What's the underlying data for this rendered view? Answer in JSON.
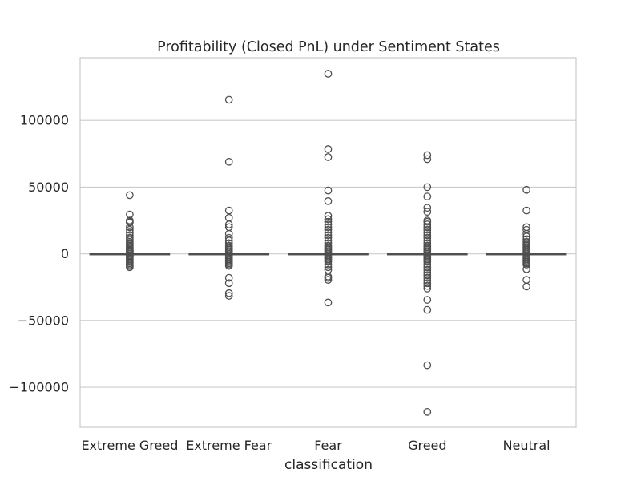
{
  "chart_data": {
    "type": "box",
    "title": "Profitability (Closed PnL) under Sentiment States",
    "xlabel": "classification",
    "ylabel": "",
    "categories": [
      "Extreme Greed",
      "Extreme Fear",
      "Fear",
      "Greed",
      "Neutral"
    ],
    "y_ticks": [
      -100000,
      -50000,
      0,
      50000,
      100000
    ],
    "y_tick_labels": [
      "−100000",
      "−50000",
      "0",
      "50000",
      "100000"
    ],
    "ylim": [
      -130000,
      147000
    ],
    "grid": "horizontal",
    "box_color": "#4f4f4f",
    "boxes": [
      {
        "category": "Extreme Greed",
        "q1": 0,
        "median": 0,
        "q3": 0,
        "whisker_low": 0,
        "whisker_high": 0,
        "outliers": [
          44000,
          29500,
          25000,
          24000,
          23500,
          20000,
          18000,
          16000,
          14000,
          12000,
          10500,
          9000,
          8000,
          7000,
          6000,
          5000,
          4000,
          3000,
          2500,
          2000,
          1500,
          1000,
          -1000,
          -1500,
          -2000,
          -3000,
          -4000,
          -5000,
          -6000,
          -7000,
          -8000,
          -9000,
          -10000
        ]
      },
      {
        "category": "Extreme Fear",
        "q1": 0,
        "median": 0,
        "q3": 0,
        "whisker_low": 0,
        "whisker_high": 0,
        "outliers": [
          115500,
          69000,
          32500,
          27000,
          22000,
          20000,
          15000,
          12000,
          10000,
          8000,
          6000,
          5000,
          4000,
          3000,
          2000,
          1000,
          -1000,
          -2000,
          -3000,
          -4000,
          -5000,
          -6000,
          -7000,
          -8000,
          -9000,
          -18000,
          -22000,
          -29500,
          -31500
        ]
      },
      {
        "category": "Fear",
        "q1": 0,
        "median": 0,
        "q3": 0,
        "whisker_low": 0,
        "whisker_high": 0,
        "outliers": [
          135000,
          78500,
          72500,
          39500,
          47500,
          28500,
          26000,
          24000,
          22000,
          20000,
          18000,
          16000,
          14000,
          12000,
          10000,
          8000,
          6000,
          5000,
          4000,
          3000,
          2000,
          1000,
          -1000,
          -2000,
          -3000,
          -4000,
          -5000,
          -6000,
          -8000,
          -10000,
          -12000,
          -17000,
          -18000,
          -19500,
          -36500
        ]
      },
      {
        "category": "Greed",
        "q1": 0,
        "median": 0,
        "q3": 0,
        "whisker_low": 0,
        "whisker_high": 0,
        "outliers": [
          74000,
          71000,
          50000,
          43000,
          34500,
          31500,
          25000,
          24000,
          22000,
          20000,
          18000,
          16000,
          14000,
          12000,
          10000,
          8000,
          6000,
          5000,
          4000,
          3000,
          2000,
          1000,
          -1000,
          -2000,
          -3000,
          -4000,
          -5000,
          -6000,
          -8000,
          -10000,
          -12000,
          -14000,
          -16000,
          -18000,
          -20000,
          -22000,
          -24000,
          -26000,
          -34500,
          -42000,
          -83500,
          -118500
        ]
      },
      {
        "category": "Neutral",
        "q1": 0,
        "median": 0,
        "q3": 0,
        "whisker_low": 0,
        "whisker_high": 0,
        "outliers": [
          48000,
          32500,
          20000,
          18000,
          15000,
          13000,
          11000,
          9000,
          8000,
          7000,
          6000,
          5000,
          4000,
          3000,
          2000,
          1000,
          -1000,
          -2000,
          -3000,
          -4000,
          -5000,
          -6000,
          -7000,
          -8000,
          -11500,
          -19500,
          -24500
        ]
      }
    ]
  }
}
